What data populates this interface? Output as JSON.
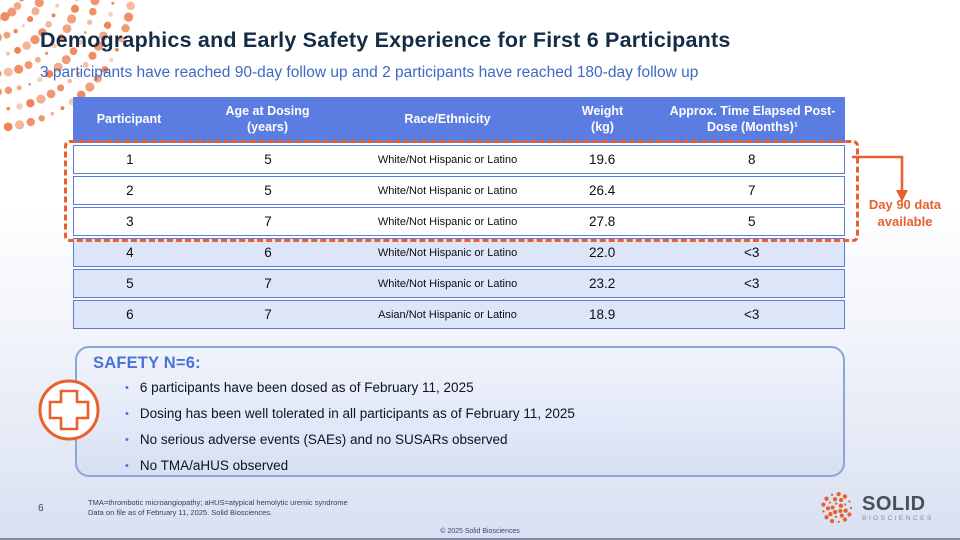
{
  "slide": {
    "title": "Demographics and Early Safety Experience for First 6 Participants",
    "subtitle": "3 participants have reached 90-day follow up and 2 participants have reached 180-day follow up",
    "page_number": "6"
  },
  "table": {
    "headers": [
      "Participant",
      "Age at Dosing (years)",
      "Race/Ethnicity",
      "Weight (kg)",
      "Approx. Time Elapsed Post-Dose (Months)¹"
    ],
    "rows": [
      {
        "cells": [
          "1",
          "5",
          "White/Not Hispanic or Latino",
          "19.6",
          "8"
        ]
      },
      {
        "cells": [
          "2",
          "5",
          "White/Not Hispanic or Latino",
          "26.4",
          "7"
        ]
      },
      {
        "cells": [
          "3",
          "7",
          "White/Not Hispanic or Latino",
          "27.8",
          "5"
        ]
      },
      {
        "cells": [
          "4",
          "6",
          "White/Not Hispanic or Latino",
          "22.0",
          "<3"
        ]
      },
      {
        "cells": [
          "5",
          "7",
          "White/Not Hispanic or Latino",
          "23.2",
          "<3"
        ]
      },
      {
        "cells": [
          "6",
          "7",
          "Asian/Not Hispanic or Latino",
          "18.9",
          "<3"
        ]
      }
    ]
  },
  "annotation": {
    "day90_label": "Day 90 data available"
  },
  "safety": {
    "title": "SAFETY N=6:",
    "bullets": [
      "6 participants have been dosed as of February 11, 2025",
      "Dosing has been well tolerated in all participants as of February 11, 2025",
      "No serious adverse events (SAEs) and no SUSARs observed",
      "No TMA/aHUS observed"
    ]
  },
  "footer": {
    "footnote_line1": "TMA=thrombotic microangiopathy; aHUS=atypical hemolytic uremic syndrome",
    "footnote_line2": "Data on file as of February 11, 2025. Solid Biosciences.",
    "copyright": "© 2025 Solid Biosciences",
    "logo_name": "SOLID",
    "logo_subname": "BIOSCIENCES"
  },
  "colors": {
    "accent_orange": "#E8612C",
    "header_blue": "#5B7CE0",
    "row_alt_blue": "#DDE5F8",
    "title_navy": "#142C46",
    "subtitle_blue": "#3E68C6",
    "safety_blue": "#4A72D9"
  }
}
